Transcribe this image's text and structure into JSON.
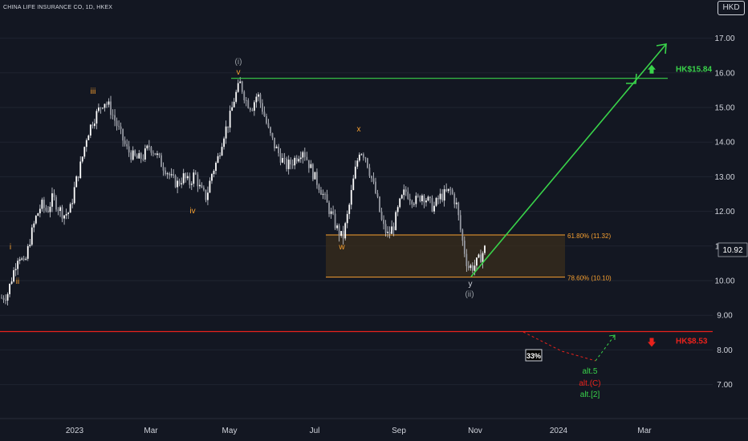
{
  "header": {
    "symbol_title": "CHINA LIFE INSURANCE CO, 1D, HKEX",
    "currency": "HKD"
  },
  "chart_data": {
    "type": "candlestick",
    "x_ticks": [
      "2023",
      "Mar",
      "May",
      "Jul",
      "Sep",
      "Nov",
      "2024",
      "Mar"
    ],
    "y_ticks": [
      "7.00",
      "8.00",
      "9.00",
      "10.00",
      "11.00",
      "12.00",
      "13.00",
      "14.00",
      "15.00",
      "16.00",
      "17.00"
    ],
    "ylim": [
      6.3,
      17.3
    ],
    "last_price": "10.92",
    "levels": [
      {
        "label": "HK$15.84",
        "value": 15.84,
        "color": "#39d34a",
        "arrow": "up"
      },
      {
        "label": "HK$8.53",
        "value": 8.53,
        "color": "#e8221c",
        "arrow": "down"
      }
    ],
    "fib_zone": {
      "upper": {
        "label": "61.80% (11.32)",
        "value": 11.32
      },
      "lower": {
        "label": "78.60% (10.10)",
        "value": 10.1
      }
    },
    "wave_labels": [
      {
        "text": "i",
        "color": "#f7a030"
      },
      {
        "text": "ii",
        "color": "#f7a030"
      },
      {
        "text": "iii",
        "color": "#f7a030"
      },
      {
        "text": "iv",
        "color": "#f7a030"
      },
      {
        "text": "v",
        "color": "#f7a030"
      },
      {
        "text": "(i)",
        "color": "#9aa0a6"
      },
      {
        "text": "w",
        "color": "#f7a030"
      },
      {
        "text": "x",
        "color": "#f7a030"
      },
      {
        "text": "y",
        "color": "#d1d4dc"
      },
      {
        "text": "(ii)",
        "color": "#9aa0a6"
      }
    ],
    "alt_labels": [
      {
        "text": "alt.5",
        "color": "#39d34a"
      },
      {
        "text": "alt.(C)",
        "color": "#e8221c"
      },
      {
        "text": "alt.[2]",
        "color": "#39d34a"
      }
    ],
    "probability_box": "33%",
    "price_path": [
      9.5,
      9.6,
      10.2,
      10.8,
      10.4,
      11.2,
      11.8,
      12.2,
      12.0,
      12.4,
      12.1,
      11.9,
      12.0,
      12.8,
      13.4,
      14.2,
      14.6,
      14.9,
      15.2,
      15.0,
      14.6,
      14.2,
      13.8,
      13.6,
      13.5,
      13.6,
      13.9,
      13.7,
      13.4,
      13.2,
      12.9,
      12.8,
      13.0,
      12.8,
      13.1,
      12.6,
      12.4,
      13.1,
      13.5,
      14.2,
      14.6,
      15.3,
      15.7,
      15.2,
      15.0,
      15.4,
      14.9,
      14.3,
      13.9,
      13.6,
      13.3,
      13.4,
      13.6,
      13.8,
      13.4,
      13.0,
      12.7,
      12.3,
      11.9,
      11.5,
      11.2,
      12.0,
      13.0,
      13.8,
      13.6,
      13.0,
      12.4,
      11.6,
      11.3,
      11.6,
      12.2,
      12.6,
      12.4,
      12.3,
      12.5,
      12.3,
      12.1,
      12.4,
      12.5,
      12.6,
      12.2,
      11.2,
      10.4,
      10.4,
      10.6,
      10.92
    ]
  }
}
